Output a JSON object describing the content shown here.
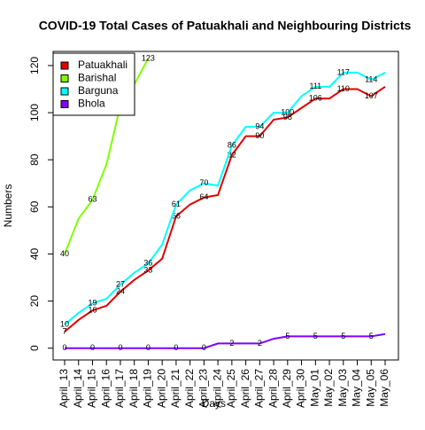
{
  "chart_data": {
    "type": "line",
    "title": "COVID-19 Total Cases of Patuakhali and Neighbouring Districts",
    "x_label": "Days",
    "y_label": "Numbers",
    "categories": [
      "April_13",
      "April_14",
      "April_15",
      "April_16",
      "April_17",
      "April_18",
      "April_19",
      "April_20",
      "April_21",
      "April_22",
      "April_23",
      "April_24",
      "April_25",
      "April_26",
      "April_27",
      "April_28",
      "April_29",
      "April_30",
      "May_01",
      "May_02",
      "May_03",
      "May_04",
      "May_05",
      "May_06"
    ],
    "series": [
      {
        "name": "Patuakhali",
        "color": "#e00000",
        "values": [
          7,
          12,
          16,
          18,
          24,
          29,
          33,
          38,
          56,
          61,
          64,
          65,
          82,
          90,
          90,
          97,
          98,
          102,
          106,
          106,
          110,
          110,
          107,
          111
        ]
      },
      {
        "name": "Barishal",
        "color": "#80ff00",
        "values": [
          40,
          55,
          63,
          78,
          103,
          112,
          123,
          null,
          null,
          null,
          null,
          null,
          null,
          null,
          null,
          null,
          null,
          null,
          null,
          null,
          null,
          null,
          null,
          null
        ]
      },
      {
        "name": "Barguna",
        "color": "#00ffff",
        "values": [
          10,
          15,
          19,
          21,
          27,
          32,
          36,
          44,
          61,
          67,
          70,
          69,
          86,
          94,
          94,
          100,
          100,
          107,
          111,
          111,
          117,
          117,
          114,
          117
        ]
      },
      {
        "name": "Bhola",
        "color": "#8000ff",
        "values": [
          0,
          0,
          0,
          0,
          0,
          0,
          0,
          0,
          0,
          0,
          0,
          2,
          2,
          2,
          2,
          4,
          5,
          5,
          5,
          5,
          5,
          5,
          5,
          6
        ]
      }
    ],
    "ylim": [
      -5,
      126
    ],
    "yticks": [
      0,
      20,
      40,
      60,
      80,
      100,
      120
    ],
    "legend": "top-left"
  }
}
